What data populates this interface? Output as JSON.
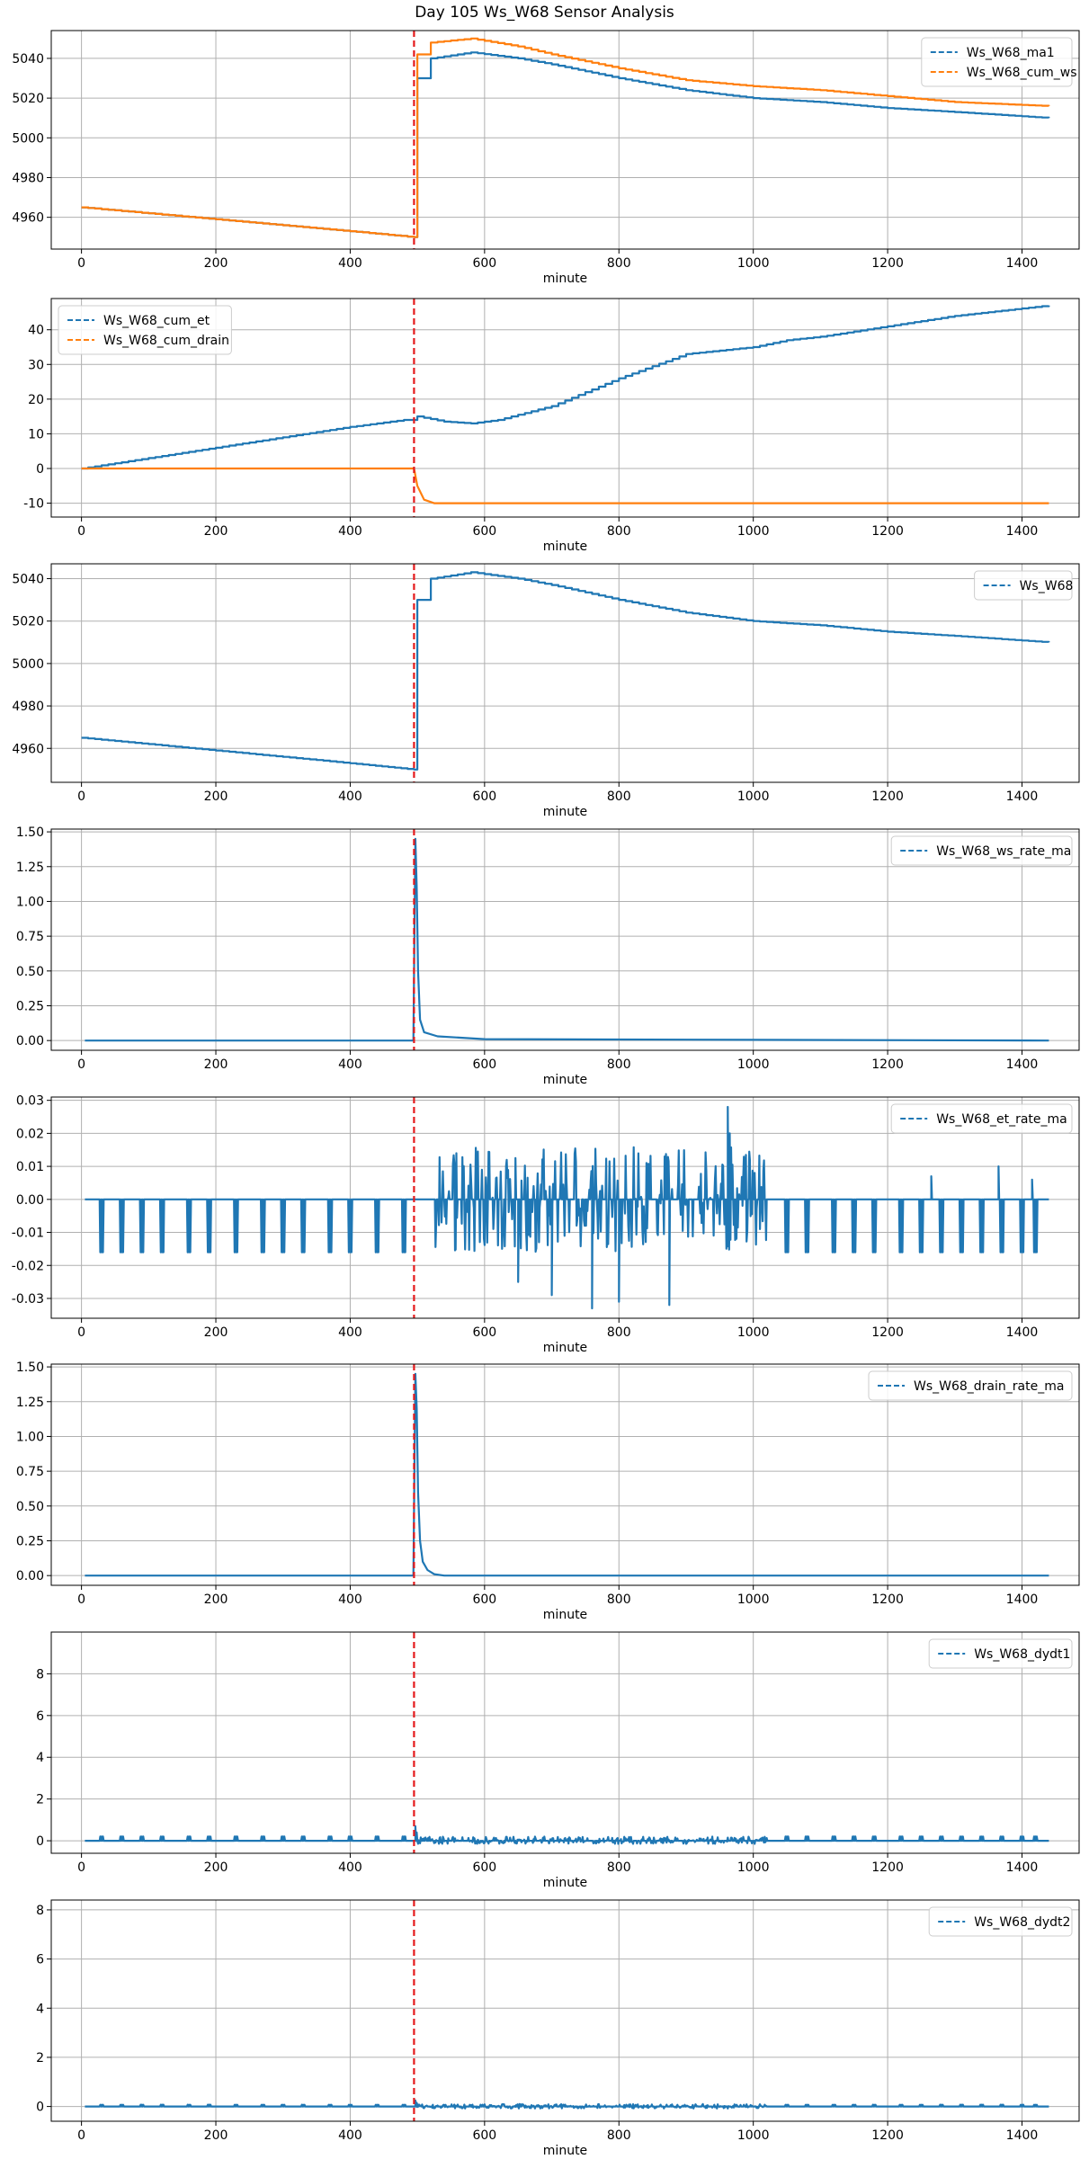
{
  "title": "Day 105 Ws_W68 Sensor Analysis",
  "colors": {
    "blue": "#1f77b4",
    "orange": "#ff7f0e",
    "event": "#e41a1c",
    "grid": "#b0b0b0"
  },
  "chart_data": [
    {
      "type": "line",
      "xlabel": "minute",
      "xlim": [
        -45,
        1485
      ],
      "xticks": [
        0,
        200,
        400,
        600,
        800,
        1000,
        1200,
        1400
      ],
      "ylim": [
        4944,
        5054
      ],
      "yticks": [
        4960,
        4980,
        5000,
        5020,
        5040
      ],
      "ytick_labels": [
        "4960",
        "4980",
        "5000",
        "5020",
        "5040"
      ],
      "vline": 495,
      "legend_position": "top-right",
      "series": [
        {
          "name": "Ws_W68_ma1",
          "color": "#1f77b4",
          "style": "steps",
          "points": [
            [
              0,
              4965
            ],
            [
              100,
              4962
            ],
            [
              200,
              4959
            ],
            [
              300,
              4956
            ],
            [
              400,
              4953
            ],
            [
              495,
              4950
            ],
            [
              500,
              5030
            ],
            [
              520,
              5040
            ],
            [
              580,
              5043
            ],
            [
              650,
              5040
            ],
            [
              700,
              5037
            ],
            [
              800,
              5030
            ],
            [
              900,
              5024
            ],
            [
              1000,
              5020
            ],
            [
              1100,
              5018
            ],
            [
              1200,
              5015
            ],
            [
              1300,
              5013
            ],
            [
              1440,
              5010
            ]
          ]
        },
        {
          "name": "Ws_W68_cum_ws",
          "color": "#ff7f0e",
          "style": "steps",
          "points": [
            [
              0,
              4965
            ],
            [
              100,
              4962
            ],
            [
              200,
              4959
            ],
            [
              300,
              4956
            ],
            [
              400,
              4953
            ],
            [
              495,
              4950
            ],
            [
              500,
              5042
            ],
            [
              520,
              5048
            ],
            [
              580,
              5050
            ],
            [
              650,
              5046
            ],
            [
              700,
              5042
            ],
            [
              800,
              5035
            ],
            [
              900,
              5029
            ],
            [
              1000,
              5026
            ],
            [
              1100,
              5024
            ],
            [
              1200,
              5021
            ],
            [
              1300,
              5018
            ],
            [
              1440,
              5016
            ]
          ]
        }
      ]
    },
    {
      "type": "line",
      "xlabel": "minute",
      "xlim": [
        -45,
        1485
      ],
      "xticks": [
        0,
        200,
        400,
        600,
        800,
        1000,
        1200,
        1400
      ],
      "ylim": [
        -14,
        49
      ],
      "yticks": [
        -10,
        0,
        10,
        20,
        30,
        40
      ],
      "ytick_labels": [
        "-10",
        "0",
        "10",
        "20",
        "30",
        "40"
      ],
      "vline": 495,
      "legend_position": "top-left",
      "series": [
        {
          "name": "Ws_W68_cum_et",
          "color": "#1f77b4",
          "style": "steps",
          "points": [
            [
              0,
              0
            ],
            [
              100,
              3
            ],
            [
              200,
              6
            ],
            [
              300,
              9
            ],
            [
              400,
              12
            ],
            [
              480,
              14
            ],
            [
              500,
              15
            ],
            [
              540,
              13.5
            ],
            [
              580,
              13
            ],
            [
              620,
              14
            ],
            [
              700,
              18
            ],
            [
              800,
              26
            ],
            [
              900,
              33
            ],
            [
              1000,
              35
            ],
            [
              1050,
              37
            ],
            [
              1100,
              38
            ],
            [
              1200,
              41
            ],
            [
              1300,
              44
            ],
            [
              1440,
              47
            ]
          ]
        },
        {
          "name": "Ws_W68_cum_drain",
          "color": "#ff7f0e",
          "style": "line",
          "points": [
            [
              0,
              0
            ],
            [
              495,
              0
            ],
            [
              500,
              -5
            ],
            [
              510,
              -9
            ],
            [
              525,
              -10
            ],
            [
              1440,
              -10
            ]
          ]
        }
      ]
    },
    {
      "type": "line",
      "xlabel": "minute",
      "xlim": [
        -45,
        1485
      ],
      "xticks": [
        0,
        200,
        400,
        600,
        800,
        1000,
        1200,
        1400
      ],
      "ylim": [
        4944,
        5047
      ],
      "yticks": [
        4960,
        4980,
        5000,
        5020,
        5040
      ],
      "ytick_labels": [
        "4960",
        "4980",
        "5000",
        "5020",
        "5040"
      ],
      "vline": 495,
      "legend_position": "top-right",
      "series": [
        {
          "name": "Ws_W68",
          "color": "#1f77b4",
          "style": "steps",
          "points": [
            [
              0,
              4965
            ],
            [
              100,
              4962
            ],
            [
              200,
              4959
            ],
            [
              300,
              4956
            ],
            [
              400,
              4953
            ],
            [
              495,
              4950
            ],
            [
              500,
              5030
            ],
            [
              520,
              5040
            ],
            [
              580,
              5043
            ],
            [
              650,
              5040
            ],
            [
              700,
              5037
            ],
            [
              800,
              5030
            ],
            [
              900,
              5024
            ],
            [
              1000,
              5020
            ],
            [
              1100,
              5018
            ],
            [
              1200,
              5015
            ],
            [
              1300,
              5013
            ],
            [
              1440,
              5010
            ]
          ]
        }
      ]
    },
    {
      "type": "line",
      "xlabel": "minute",
      "xlim": [
        -45,
        1485
      ],
      "xticks": [
        0,
        200,
        400,
        600,
        800,
        1000,
        1200,
        1400
      ],
      "ylim": [
        -0.07,
        1.52
      ],
      "yticks": [
        0,
        0.25,
        0.5,
        0.75,
        1.0,
        1.25,
        1.5
      ],
      "ytick_labels": [
        "0.00",
        "0.25",
        "0.50",
        "0.75",
        "1.00",
        "1.25",
        "1.50"
      ],
      "vline": 495,
      "legend_position": "top-right",
      "series": [
        {
          "name": "Ws_W68_ws_rate_ma",
          "color": "#1f77b4",
          "style": "line",
          "points": [
            [
              5,
              0
            ],
            [
              494,
              0
            ],
            [
              497,
              1.45
            ],
            [
              499,
              1.1
            ],
            [
              501,
              0.5
            ],
            [
              504,
              0.15
            ],
            [
              510,
              0.06
            ],
            [
              530,
              0.03
            ],
            [
              600,
              0.01
            ],
            [
              1000,
              0.005
            ],
            [
              1440,
              0
            ]
          ]
        }
      ]
    },
    {
      "type": "line",
      "xlabel": "minute",
      "xlim": [
        -45,
        1485
      ],
      "xticks": [
        0,
        200,
        400,
        600,
        800,
        1000,
        1200,
        1400
      ],
      "ylim": [
        -0.036,
        0.031
      ],
      "yticks": [
        -0.03,
        -0.02,
        -0.01,
        0.0,
        0.01,
        0.02,
        0.03
      ],
      "ytick_labels": [
        "-0.03",
        "-0.02",
        "-0.01",
        "0.00",
        "0.01",
        "0.02",
        "0.03"
      ],
      "vline": 495,
      "legend_position": "top-right",
      "series": [
        {
          "name": "Ws_W68_et_rate_ma",
          "color": "#1f77b4",
          "style": "noisy",
          "baseline": 0,
          "dip_minutes": [
            30,
            60,
            90,
            120,
            160,
            190,
            230,
            270,
            300,
            330,
            370,
            400,
            440,
            480,
            1050,
            1080,
            1120,
            1150,
            1180,
            1220,
            1250,
            1280,
            1310,
            1340,
            1370,
            1400,
            1420
          ],
          "dip_value": -0.016,
          "active_range": [
            520,
            1020
          ],
          "active_min": -0.016,
          "active_max": 0.016,
          "spikes": [
            [
              650,
              -0.025
            ],
            [
              700,
              -0.029
            ],
            [
              760,
              -0.033
            ],
            [
              800,
              -0.031
            ],
            [
              875,
              -0.032
            ],
            [
              962,
              0.028
            ],
            [
              965,
              0.02
            ],
            [
              1265,
              0.007
            ],
            [
              1365,
              0.01
            ],
            [
              1415,
              0.006
            ]
          ]
        }
      ]
    },
    {
      "type": "line",
      "xlabel": "minute",
      "xlim": [
        -45,
        1485
      ],
      "xticks": [
        0,
        200,
        400,
        600,
        800,
        1000,
        1200,
        1400
      ],
      "ylim": [
        -0.07,
        1.52
      ],
      "yticks": [
        0,
        0.25,
        0.5,
        0.75,
        1.0,
        1.25,
        1.5
      ],
      "ytick_labels": [
        "0.00",
        "0.25",
        "0.50",
        "0.75",
        "1.00",
        "1.25",
        "1.50"
      ],
      "vline": 495,
      "legend_position": "top-right",
      "series": [
        {
          "name": "Ws_W68_drain_rate_ma",
          "color": "#1f77b4",
          "style": "line",
          "points": [
            [
              5,
              0
            ],
            [
              494,
              0
            ],
            [
              497,
              1.45
            ],
            [
              499,
              1.2
            ],
            [
              501,
              0.6
            ],
            [
              504,
              0.25
            ],
            [
              508,
              0.1
            ],
            [
              515,
              0.04
            ],
            [
              525,
              0.01
            ],
            [
              540,
              0
            ],
            [
              1440,
              0
            ]
          ]
        }
      ]
    },
    {
      "type": "line",
      "xlabel": "minute",
      "xlim": [
        -45,
        1485
      ],
      "xticks": [
        0,
        200,
        400,
        600,
        800,
        1000,
        1200,
        1400
      ],
      "ylim": [
        -0.6,
        10.0
      ],
      "yticks": [
        0,
        2,
        4,
        6,
        8
      ],
      "ytick_labels": [
        "0",
        "2",
        "4",
        "6",
        "8"
      ],
      "vline": 495,
      "legend_position": "top-right",
      "series": [
        {
          "name": "Ws_W68_dydt1",
          "color": "#1f77b4",
          "style": "noisy",
          "baseline": 0,
          "dip_minutes": [
            30,
            60,
            90,
            120,
            160,
            190,
            230,
            270,
            300,
            330,
            370,
            400,
            440,
            480,
            1050,
            1080,
            1120,
            1150,
            1180,
            1220,
            1250,
            1280,
            1310,
            1340,
            1370,
            1400,
            1420
          ],
          "dip_value": 0.2,
          "active_range": [
            500,
            1020
          ],
          "active_min": -0.15,
          "active_max": 0.2,
          "spikes": [
            [
              497,
              0.7
            ],
            [
              499,
              0.4
            ]
          ]
        }
      ]
    },
    {
      "type": "line",
      "xlabel": "minute",
      "xlim": [
        -45,
        1485
      ],
      "xticks": [
        0,
        200,
        400,
        600,
        800,
        1000,
        1200,
        1400
      ],
      "ylim": [
        -0.6,
        8.4
      ],
      "yticks": [
        0,
        2,
        4,
        6,
        8
      ],
      "ytick_labels": [
        "0",
        "2",
        "4",
        "6",
        "8"
      ],
      "vline": 495,
      "legend_position": "top-right",
      "series": [
        {
          "name": "Ws_W68_dydt2",
          "color": "#1f77b4",
          "style": "noisy",
          "baseline": 0,
          "dip_minutes": [
            30,
            60,
            90,
            120,
            160,
            190,
            230,
            270,
            300,
            330,
            370,
            400,
            440,
            480,
            1050,
            1080,
            1120,
            1150,
            1180,
            1220,
            1250,
            1280,
            1310,
            1340,
            1370,
            1400,
            1420
          ],
          "dip_value": 0.07,
          "active_range": [
            500,
            1020
          ],
          "active_min": -0.08,
          "active_max": 0.1,
          "spikes": [
            [
              497,
              0.25
            ],
            [
              499,
              0.15
            ]
          ]
        }
      ]
    }
  ]
}
